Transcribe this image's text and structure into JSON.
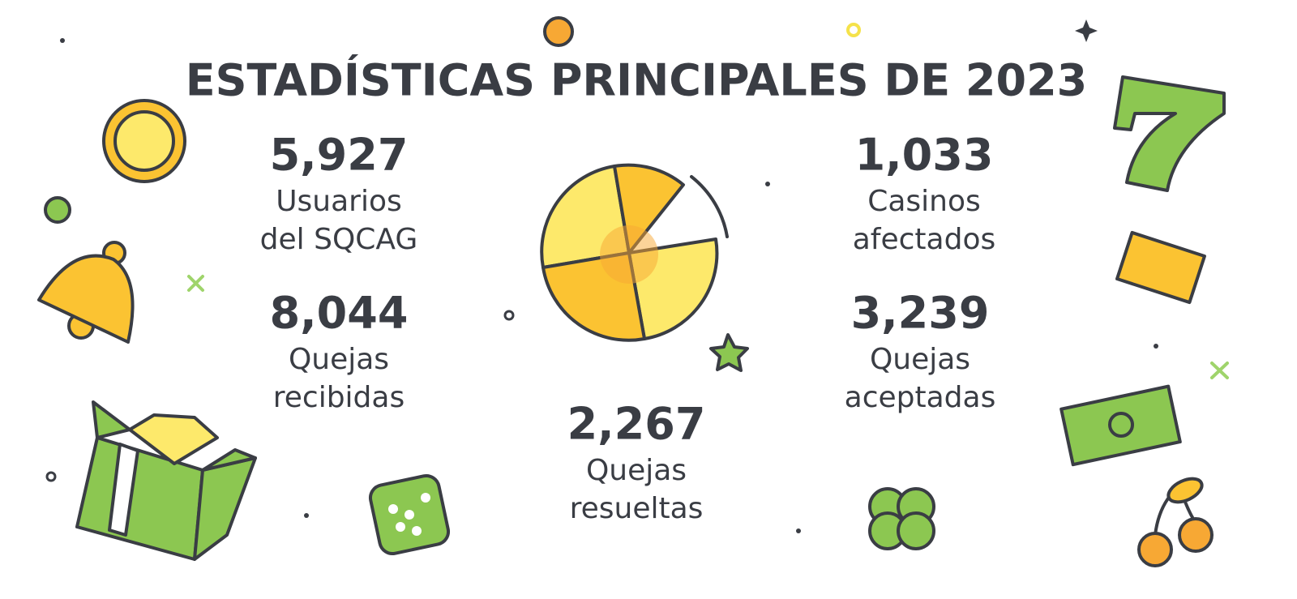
{
  "title": "ESTADÍSTICAS PRINCIPALES DE 2023",
  "stats": [
    {
      "value": "5,927",
      "label": [
        "Usuarios",
        "del SQCAG"
      ]
    },
    {
      "value": "8,044",
      "label": [
        "Quejas",
        "recibidas"
      ]
    },
    {
      "value": "1,033",
      "label": [
        "Casinos",
        "afectados"
      ]
    },
    {
      "value": "3,239",
      "label": [
        "Quejas",
        "aceptadas"
      ]
    },
    {
      "value": "2,267",
      "label": [
        "Quejas",
        "resueltas"
      ]
    }
  ]
}
